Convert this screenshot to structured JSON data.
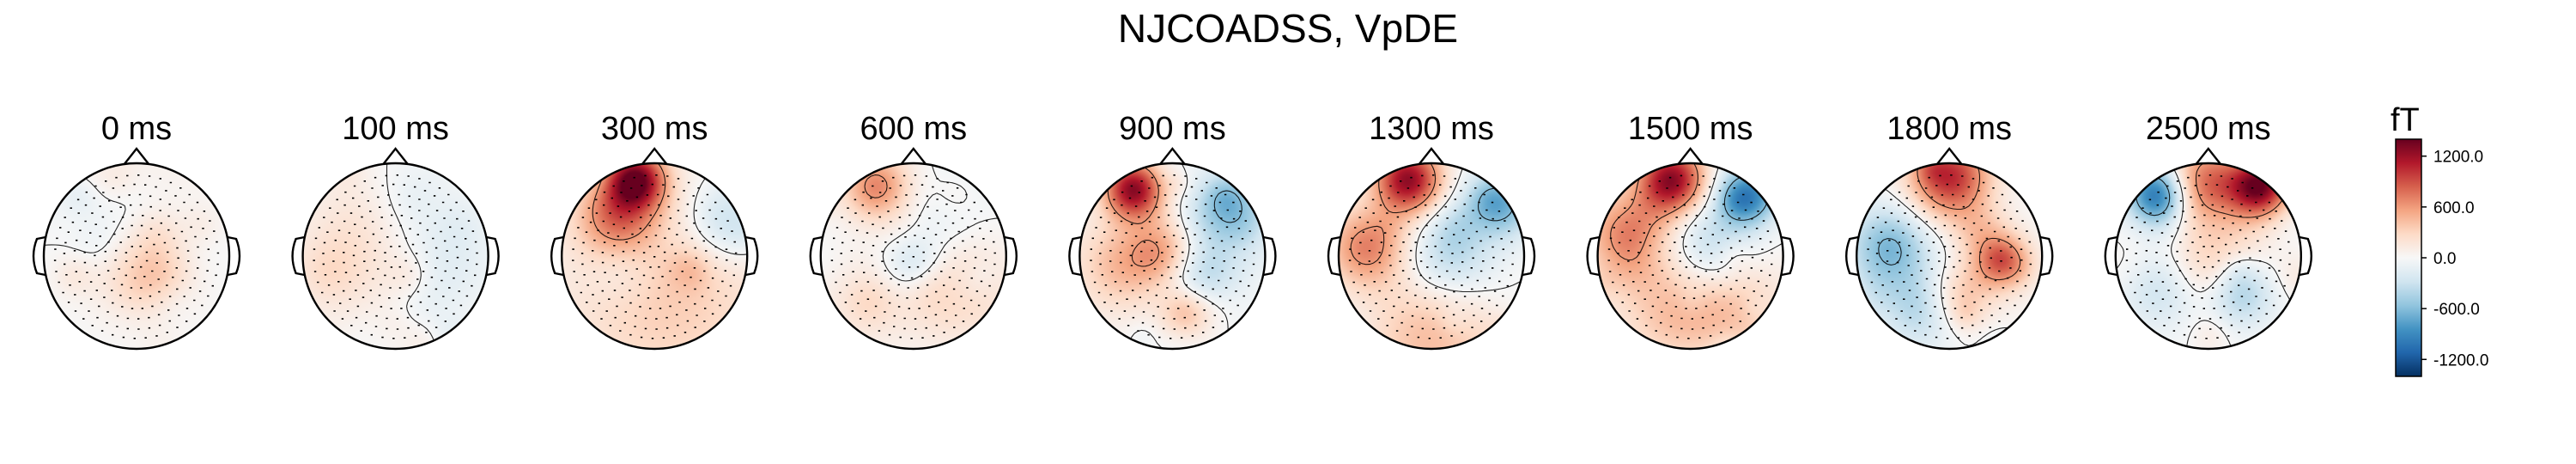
{
  "chart_data": {
    "type": "heatmap",
    "title": "NJCOADSS, VpDE",
    "panels": [
      {
        "label": "0 ms",
        "blobs": [
          [
            0.0,
            0.15,
            0.35,
            0.2
          ],
          [
            0.25,
            0.2,
            0.25,
            0.15
          ],
          [
            -0.15,
            -0.55,
            0.4,
            -0.12
          ],
          [
            0.0,
            -0.85,
            0.5,
            0.1
          ]
        ]
      },
      {
        "label": "100 ms",
        "blobs": [
          [
            -0.55,
            0.1,
            0.45,
            0.15
          ],
          [
            0.55,
            0.1,
            0.35,
            -0.12
          ],
          [
            0.1,
            -0.6,
            0.35,
            -0.1
          ],
          [
            -0.3,
            -0.5,
            0.4,
            0.1
          ]
        ]
      },
      {
        "label": "300 ms",
        "blobs": [
          [
            -0.2,
            -0.82,
            0.22,
            1.0
          ],
          [
            -0.4,
            -0.45,
            0.3,
            0.55
          ],
          [
            0.78,
            -0.38,
            0.3,
            -0.3
          ],
          [
            0.15,
            0.45,
            0.8,
            0.28
          ],
          [
            -0.35,
            0.15,
            0.25,
            -0.12
          ]
        ]
      },
      {
        "label": "600 ms",
        "blobs": [
          [
            -0.4,
            -0.75,
            0.25,
            0.55
          ],
          [
            0.0,
            0.1,
            0.22,
            -0.25
          ],
          [
            0.5,
            0.4,
            0.4,
            0.25
          ],
          [
            -0.5,
            0.5,
            0.35,
            0.15
          ],
          [
            0.25,
            -0.4,
            0.35,
            -0.08
          ]
        ]
      },
      {
        "label": "900 ms",
        "blobs": [
          [
            -0.42,
            -0.72,
            0.22,
            1.0
          ],
          [
            0.62,
            -0.52,
            0.28,
            -0.5
          ],
          [
            -0.1,
            -0.05,
            0.25,
            0.45
          ],
          [
            -0.55,
            0.1,
            0.35,
            0.35
          ],
          [
            0.3,
            0.2,
            0.3,
            -0.35
          ],
          [
            0.15,
            0.6,
            0.2,
            0.4
          ]
        ]
      },
      {
        "label": "1300 ms",
        "blobs": [
          [
            -0.25,
            -0.82,
            0.25,
            1.0
          ],
          [
            0.72,
            -0.55,
            0.25,
            -0.55
          ],
          [
            -0.7,
            -0.1,
            0.3,
            0.55
          ],
          [
            0.2,
            0.0,
            0.35,
            -0.35
          ],
          [
            0.0,
            0.85,
            0.5,
            0.35
          ]
        ]
      },
      {
        "label": "1500 ms",
        "blobs": [
          [
            -0.2,
            -0.82,
            0.25,
            1.0
          ],
          [
            0.62,
            -0.65,
            0.22,
            -0.75
          ],
          [
            -0.65,
            -0.2,
            0.35,
            0.6
          ],
          [
            0.2,
            -0.1,
            0.35,
            -0.35
          ],
          [
            0.45,
            0.5,
            0.4,
            0.3
          ],
          [
            -0.2,
            0.6,
            0.4,
            0.3
          ]
        ]
      },
      {
        "label": "1800 ms",
        "blobs": [
          [
            0.0,
            -0.85,
            0.3,
            0.85
          ],
          [
            -0.65,
            -0.1,
            0.3,
            -0.5
          ],
          [
            0.55,
            0.05,
            0.22,
            0.6
          ],
          [
            0.1,
            0.45,
            0.25,
            0.35
          ],
          [
            -0.3,
            0.55,
            0.3,
            -0.35
          ],
          [
            0.3,
            -0.3,
            0.2,
            0.2
          ]
        ]
      },
      {
        "label": "2500 ms",
        "blobs": [
          [
            -0.55,
            -0.65,
            0.22,
            -0.85
          ],
          [
            0.0,
            -0.8,
            0.3,
            0.6
          ],
          [
            0.55,
            -0.75,
            0.22,
            1.0
          ],
          [
            0.05,
            -0.05,
            0.4,
            0.25
          ],
          [
            0.35,
            0.4,
            0.25,
            -0.4
          ],
          [
            -0.5,
            0.35,
            0.3,
            -0.25
          ]
        ]
      }
    ],
    "colorbar": {
      "unit": "fT",
      "min": -1400,
      "max": 1400,
      "ticks": [
        1200.0,
        600.0,
        0.0,
        -600.0,
        -1200.0
      ],
      "tick_labels": [
        "1200.0",
        "600.0",
        "0.0",
        "-600.0",
        "-1200.0"
      ],
      "colormap": [
        "#053061",
        "#2166ac",
        "#4393c3",
        "#92c5de",
        "#d1e5f0",
        "#f7f7f7",
        "#fddbc7",
        "#f4a582",
        "#d6604d",
        "#b2182b",
        "#67001f"
      ]
    },
    "sensor_markers": true,
    "grid": false,
    "legend": "colorbar-right"
  }
}
